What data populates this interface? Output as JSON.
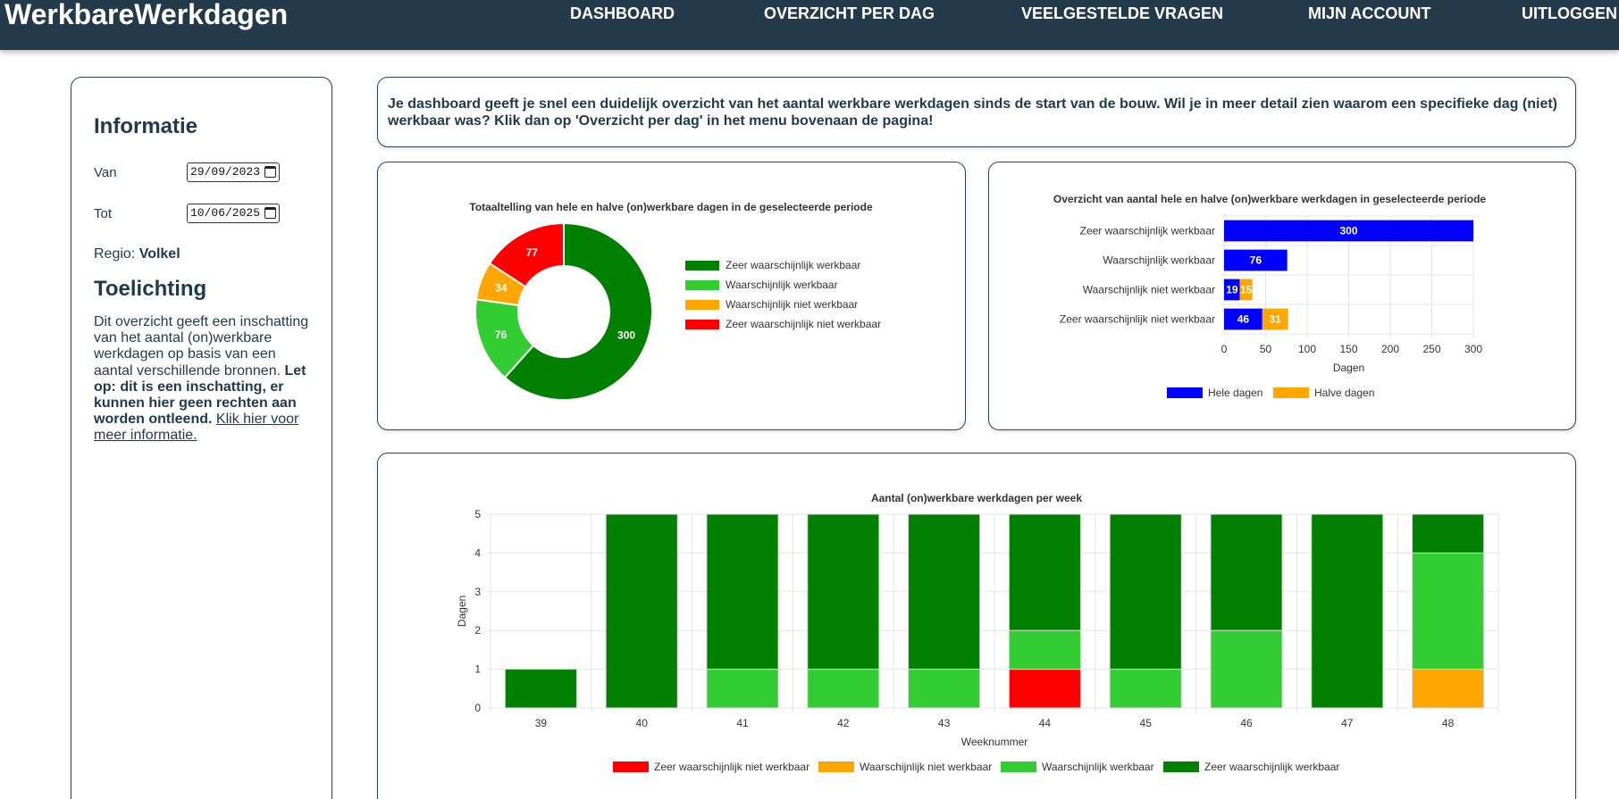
{
  "navbar": {
    "brand": "WerkbareWerkdagen",
    "items": [
      "DASHBOARD",
      "OVERZICHT PER DAG",
      "VEELGESTELDE VRAGEN",
      "MIJN ACCOUNT",
      "UITLOGGEN"
    ]
  },
  "sidebar": {
    "info_title": "Informatie",
    "van_label": "Van",
    "van_value": "29/09/2023",
    "tot_label": "Tot",
    "tot_value": "10/06/2025",
    "regio_label": "Regio:",
    "regio_value": "Volkel",
    "toelichting_title": "Toelichting",
    "text_part1": "Dit overzicht geeft een inschatting van het aantal (on)werkbare werkdagen op basis van een aantal verschillende bronnen.",
    "text_bold": "Let op: dit is een inschatting, er kunnen hier geen rechten aan worden ontleend.",
    "link_text": "Klik hier voor meer informatie."
  },
  "intro_text": "Je dashboard geeft je snel een duidelijk overzicht van het aantal werkbare werkdagen sinds de start van de bouw. Wil je in meer detail zien waarom een specifieke dag (niet) werkbaar was? Klik dan op 'Overzicht per dag' in het menu bovenaan de pagina!",
  "colors": {
    "zeer_werkbaar": "#008000",
    "werkbaar": "#33cc33",
    "niet_werkbaar": "#ffa500",
    "zeer_niet_werkbaar": "#ff0000",
    "hele_dagen": "#0000ff",
    "halve_dagen": "#ffa500"
  },
  "chart_data": [
    {
      "type": "pie",
      "title": "Totaaltelling van hele en halve (on)werkbare dagen in de geselecteerde periode",
      "labels": [
        "Zeer waarschijnlijk werkbaar",
        "Waarschijnlijk werkbaar",
        "Waarschijnlijk niet werkbaar",
        "Zeer waarschijnlijk niet werkbaar"
      ],
      "values": [
        300,
        76,
        34,
        77
      ],
      "colors": [
        "#008000",
        "#33cc33",
        "#ffa500",
        "#ff0000"
      ],
      "legend": "right"
    },
    {
      "type": "bar",
      "orientation": "horizontal",
      "stacked": true,
      "title": "Overzicht van aantal hele en halve (on)werkbare werkdagen in geselecteerde periode",
      "categories": [
        "Zeer waarschijnlijk werkbaar",
        "Waarschijnlijk werkbaar",
        "Waarschijnlijk niet werkbaar",
        "Zeer waarschijnlijk niet werkbaar"
      ],
      "series": [
        {
          "name": "Hele dagen",
          "values": [
            300,
            76,
            19,
            46
          ],
          "color": "#0000ff"
        },
        {
          "name": "Halve dagen",
          "values": [
            0,
            0,
            15,
            31
          ],
          "color": "#ffa500"
        }
      ],
      "xlabel": "Dagen",
      "xlim": [
        0,
        300
      ],
      "xticks": [
        0,
        50,
        100,
        150,
        200,
        250,
        300
      ],
      "legend": "bottom"
    },
    {
      "type": "bar",
      "stacked": true,
      "title": "Aantal (on)werkbare werkdagen per week",
      "categories": [
        "39",
        "40",
        "41",
        "42",
        "43",
        "44",
        "45",
        "46",
        "47",
        "48"
      ],
      "series": [
        {
          "name": "Zeer waarschijnlijk niet werkbaar",
          "values": [
            0,
            0,
            0,
            0,
            0,
            1,
            0,
            0,
            0,
            0
          ],
          "color": "#ff0000"
        },
        {
          "name": "Waarschijnlijk niet werkbaar",
          "values": [
            0,
            0,
            0,
            0,
            0,
            0,
            0,
            0,
            0,
            1
          ],
          "color": "#ffa500"
        },
        {
          "name": "Waarschijnlijk werkbaar",
          "values": [
            0,
            0,
            1,
            1,
            1,
            1,
            1,
            2,
            0,
            3
          ],
          "color": "#33cc33"
        },
        {
          "name": "Zeer waarschijnlijk werkbaar",
          "values": [
            1,
            5,
            4,
            4,
            4,
            3,
            4,
            3,
            5,
            1
          ],
          "color": "#008000"
        }
      ],
      "xlabel": "Weeknummer",
      "ylabel": "Dagen",
      "ylim": [
        0,
        5
      ],
      "yticks": [
        0,
        1,
        2,
        3,
        4,
        5
      ],
      "legend": "bottom"
    }
  ]
}
